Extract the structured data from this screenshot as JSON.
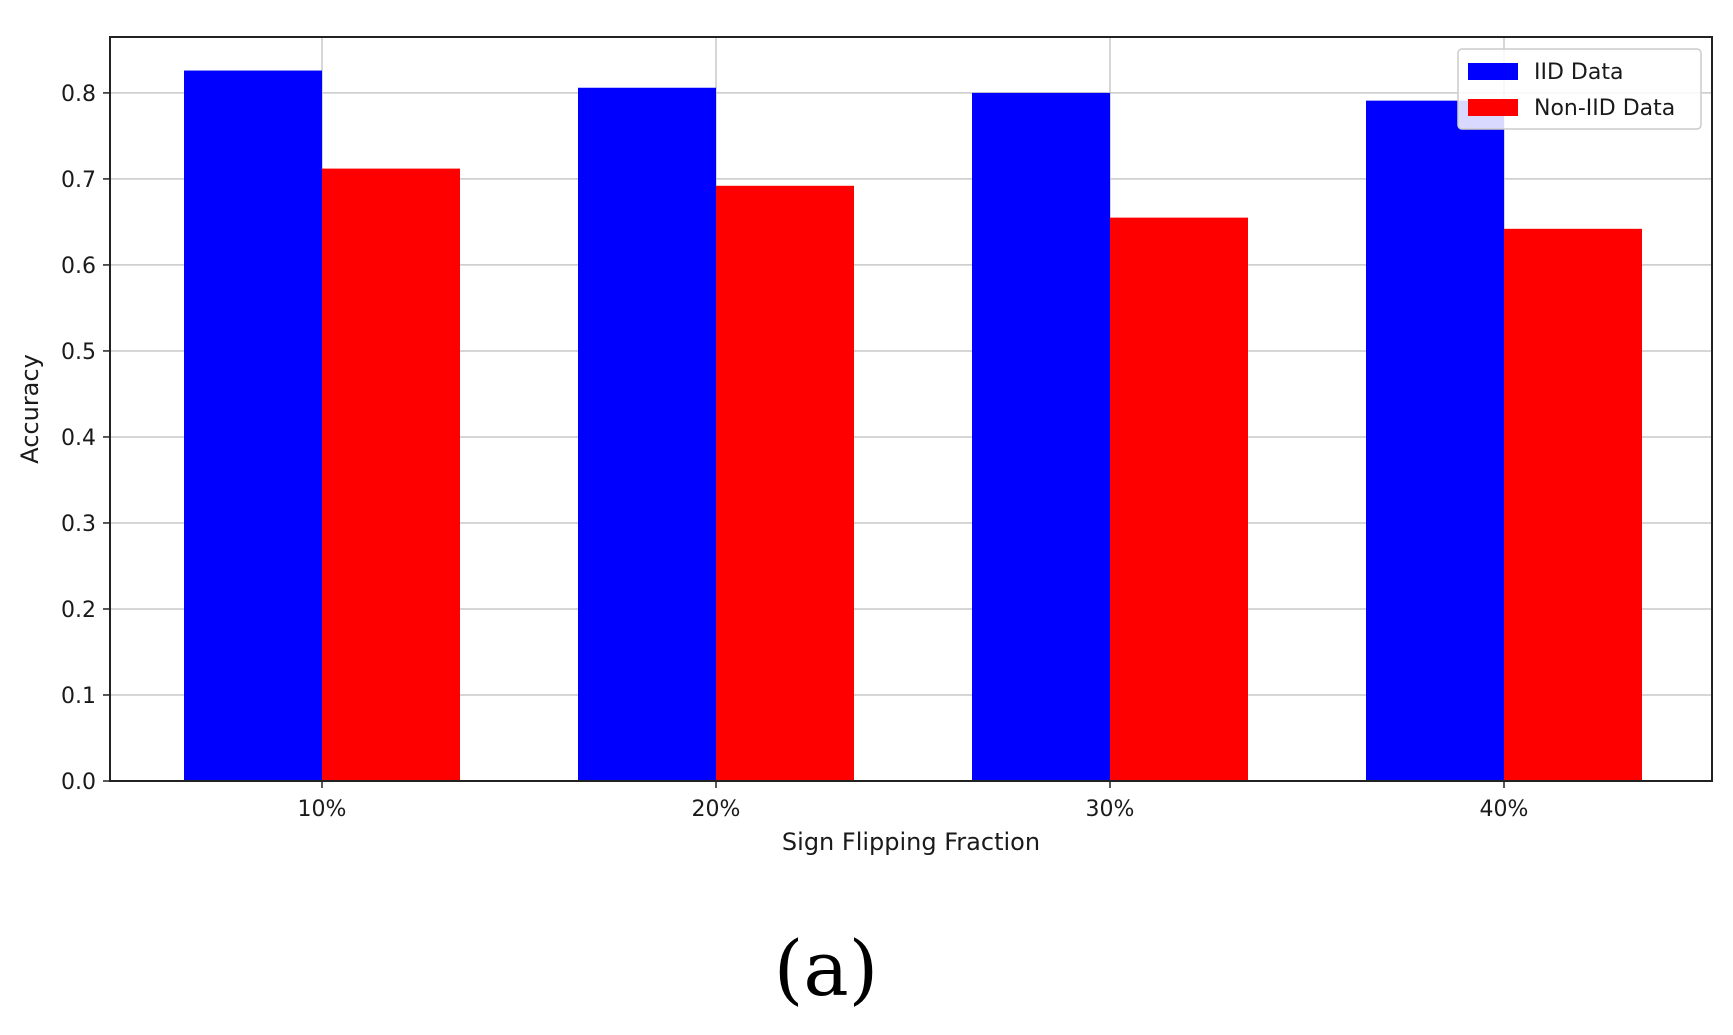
{
  "chart_data": {
    "type": "bar",
    "categories": [
      "10%",
      "20%",
      "30%",
      "40%"
    ],
    "series": [
      {
        "name": "IID Data",
        "color": "#0000ff",
        "values": [
          0.826,
          0.806,
          0.8,
          0.791
        ]
      },
      {
        "name": "Non-IID Data",
        "color": "#ff0000",
        "values": [
          0.712,
          0.692,
          0.655,
          0.642
        ]
      }
    ],
    "xlabel": "Sign Flipping Fraction",
    "ylabel": "Accuracy",
    "ylim": [
      0,
      0.865
    ],
    "yticks": [
      "0.0",
      "0.1",
      "0.2",
      "0.3",
      "0.4",
      "0.5",
      "0.6",
      "0.7",
      "0.8"
    ],
    "grid": true,
    "legend_position": "top-right"
  },
  "caption": "(a)"
}
